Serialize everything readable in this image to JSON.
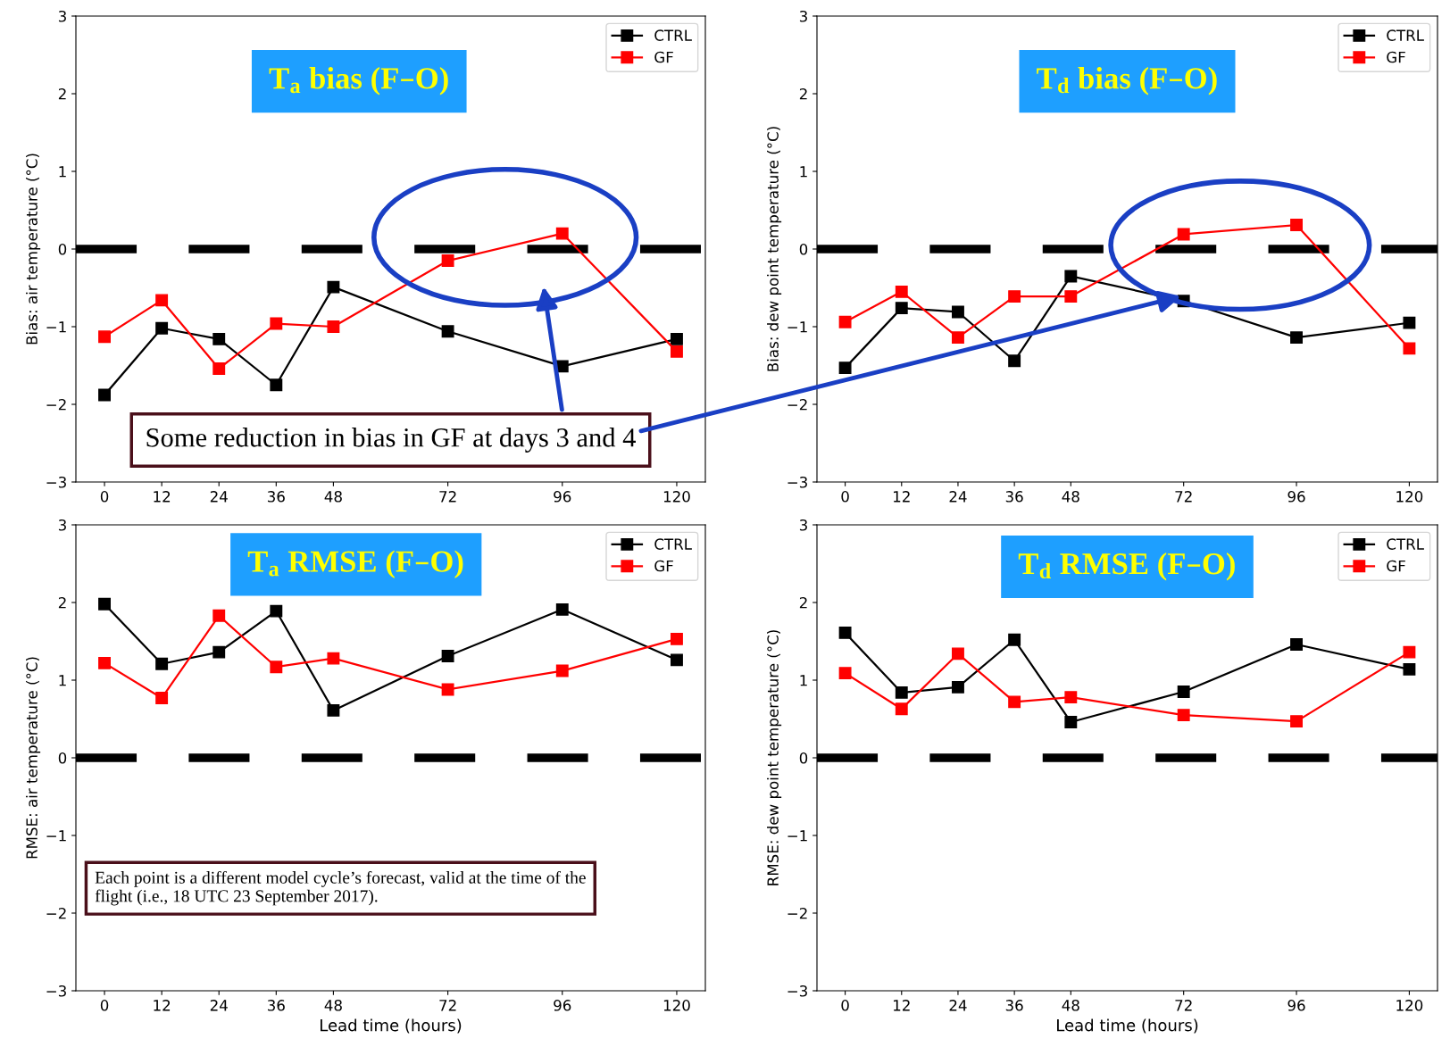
{
  "chart_data": [
    {
      "type": "line",
      "title": "T$_{a}$ bias (F–O)",
      "ylabel": "Bias: air temperature (°C)",
      "x": [
        0,
        12,
        24,
        36,
        48,
        72,
        96,
        120
      ],
      "xlim": [
        -6,
        126
      ],
      "xticks": [
        0,
        12,
        24,
        36,
        48,
        72,
        96,
        120
      ],
      "ylim": [
        -3,
        3
      ],
      "yticks": [
        -3,
        -2,
        -1,
        0,
        1,
        2,
        3
      ],
      "marker": "square",
      "legend": "top right",
      "series": [
        {
          "name": "CTRL",
          "color": "#000000",
          "values": [
            -1.88,
            -1.02,
            -1.16,
            -1.75,
            -0.49,
            -1.06,
            -1.51,
            -1.16
          ]
        },
        {
          "name": "GF",
          "color": "#ff0000",
          "values": [
            -1.13,
            -0.66,
            -1.54,
            -0.96,
            -1.0,
            -0.15,
            0.2,
            -1.32
          ]
        }
      ],
      "ref_lines": [
        {
          "axis": "y",
          "value": 0,
          "color": "#000000",
          "line_style": "dashed"
        }
      ],
      "annotations": [
        "Some reduction in bias in GF at days 3 and 4"
      ]
    },
    {
      "type": "line",
      "title": "T$_{d}$ bias (F–O)",
      "ylabel": "Bias: dew point temperature (°C)",
      "x": [
        0,
        12,
        24,
        36,
        48,
        72,
        96,
        120
      ],
      "xlim": [
        -6,
        126
      ],
      "xticks": [
        0,
        12,
        24,
        36,
        48,
        72,
        96,
        120
      ],
      "ylim": [
        -3,
        3
      ],
      "yticks": [
        -3,
        -2,
        -1,
        0,
        1,
        2,
        3
      ],
      "marker": "square",
      "legend": "top right",
      "series": [
        {
          "name": "CTRL",
          "color": "#000000",
          "values": [
            -1.53,
            -0.76,
            -0.81,
            -1.44,
            -0.35,
            -0.67,
            -1.14,
            -0.95
          ]
        },
        {
          "name": "GF",
          "color": "#ff0000",
          "values": [
            -0.94,
            -0.55,
            -1.14,
            -0.61,
            -0.61,
            0.19,
            0.31,
            -1.28
          ]
        }
      ],
      "ref_lines": [
        {
          "axis": "y",
          "value": 0,
          "color": "#000000",
          "line_style": "dashed"
        }
      ]
    },
    {
      "type": "line",
      "title": "T$_{a}$ RMSE (F–O)",
      "xlabel": "Lead time (hours)",
      "ylabel": "RMSE: air temperature (°C)",
      "x": [
        0,
        12,
        24,
        36,
        48,
        72,
        96,
        120
      ],
      "xlim": [
        -6,
        126
      ],
      "xticks": [
        0,
        12,
        24,
        36,
        48,
        72,
        96,
        120
      ],
      "ylim": [
        -3,
        3
      ],
      "yticks": [
        -3,
        -2,
        -1,
        0,
        1,
        2,
        3
      ],
      "marker": "square",
      "legend": "top right",
      "series": [
        {
          "name": "CTRL",
          "color": "#000000",
          "values": [
            1.98,
            1.21,
            1.36,
            1.89,
            0.61,
            1.31,
            1.91,
            1.26
          ]
        },
        {
          "name": "GF",
          "color": "#ff0000",
          "values": [
            1.22,
            0.77,
            1.83,
            1.17,
            1.28,
            0.88,
            1.12,
            1.53
          ]
        }
      ],
      "ref_lines": [
        {
          "axis": "y",
          "value": 0,
          "color": "#000000",
          "line_style": "dashed"
        }
      ],
      "annotations": [
        "Each point is a different model cycle’s forecast, valid at the time of the\nflight (i.e., 18 UTC 23 September 2017)."
      ]
    },
    {
      "type": "line",
      "title": "T$_{d}$ RMSE (F–O)",
      "xlabel": "Lead time (hours)",
      "ylabel": "RMSE: dew point temperature (°C)",
      "x": [
        0,
        12,
        24,
        36,
        48,
        72,
        96,
        120
      ],
      "xlim": [
        -6,
        126
      ],
      "xticks": [
        0,
        12,
        24,
        36,
        48,
        72,
        96,
        120
      ],
      "ylim": [
        -3,
        3
      ],
      "yticks": [
        -3,
        -2,
        -1,
        0,
        1,
        2,
        3
      ],
      "marker": "square",
      "legend": "top right",
      "series": [
        {
          "name": "CTRL",
          "color": "#000000",
          "values": [
            1.61,
            0.84,
            0.91,
            1.52,
            0.46,
            0.85,
            1.46,
            1.14
          ]
        },
        {
          "name": "GF",
          "color": "#ff0000",
          "values": [
            1.09,
            0.63,
            1.34,
            0.72,
            0.78,
            0.55,
            0.47,
            1.36
          ]
        }
      ],
      "ref_lines": [
        {
          "axis": "y",
          "value": 0,
          "color": "#000000",
          "line_style": "dashed"
        }
      ]
    }
  ]
}
